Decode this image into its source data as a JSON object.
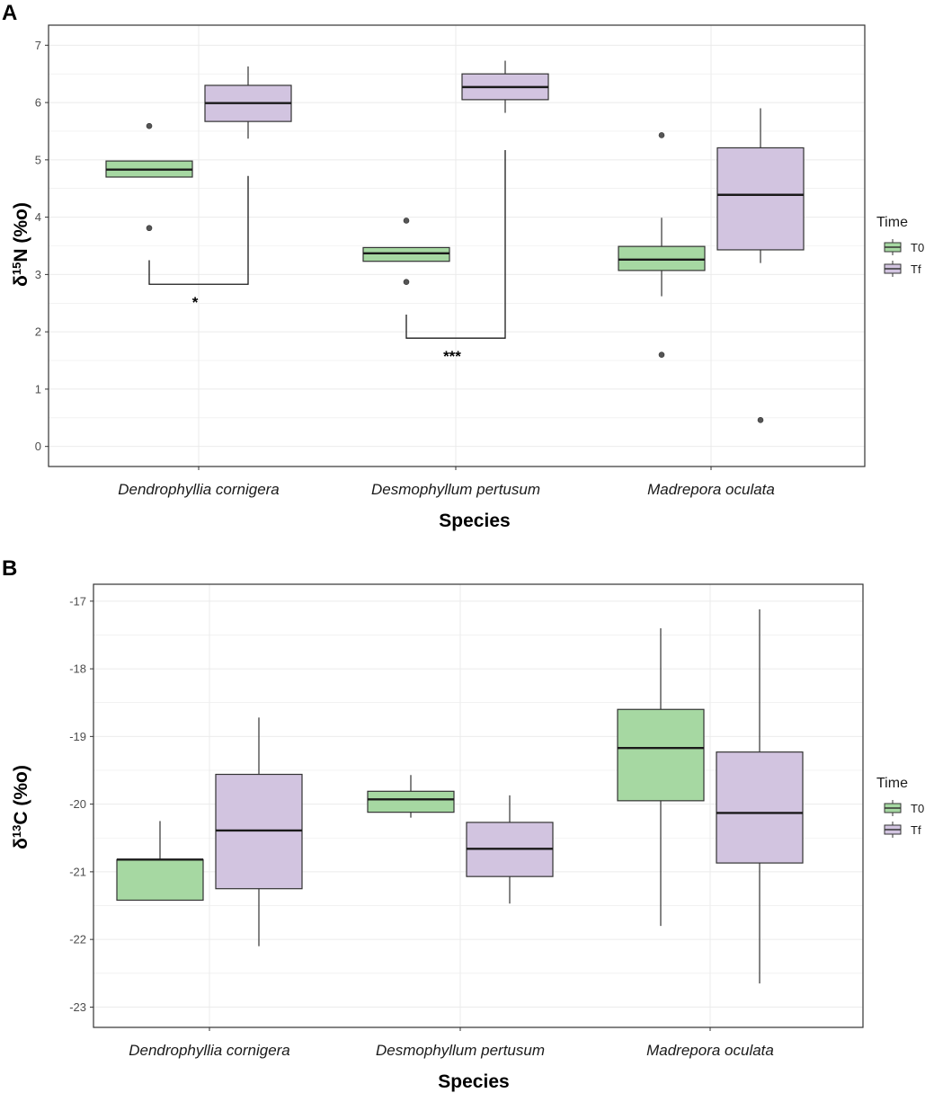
{
  "colors": {
    "T0": "#a6d8a2",
    "Tf": "#d2c4e0",
    "grid": "#ebebeb",
    "border": "#333333"
  },
  "chart_data": [
    {
      "panel": "A",
      "type": "boxplot",
      "ylabel_main": "δ",
      "ylabel_sup": "15",
      "ylabel_rest": "N (%o)",
      "xlabel": "Species",
      "ylim": [
        -0.35,
        7.35
      ],
      "yticks": [
        0,
        1,
        2,
        3,
        4,
        5,
        6,
        7
      ],
      "categories": [
        "Dendrophyllia cornigera",
        "Desmophyllum pertusum",
        "Madrepora oculata"
      ],
      "legend": {
        "title": "Time",
        "entries": [
          "T0",
          "Tf"
        ]
      },
      "series": [
        {
          "name": "T0",
          "boxes": [
            {
              "q1": 4.7,
              "median": 4.83,
              "q3": 4.98,
              "whisker_low": 4.7,
              "whisker_high": 4.98,
              "outliers": [
                5.59,
                3.81
              ]
            },
            {
              "q1": 3.23,
              "median": 3.37,
              "q3": 3.47,
              "whisker_low": 3.23,
              "whisker_high": 3.47,
              "outliers": [
                3.94,
                2.87
              ]
            },
            {
              "q1": 3.07,
              "median": 3.26,
              "q3": 3.49,
              "whisker_low": 2.62,
              "whisker_high": 3.99,
              "outliers": [
                5.43,
                1.6
              ]
            }
          ]
        },
        {
          "name": "Tf",
          "boxes": [
            {
              "q1": 5.67,
              "median": 5.99,
              "q3": 6.3,
              "whisker_low": 5.37,
              "whisker_high": 6.63,
              "outliers": []
            },
            {
              "q1": 6.05,
              "median": 6.27,
              "q3": 6.5,
              "whisker_low": 5.82,
              "whisker_high": 6.73,
              "outliers": []
            },
            {
              "q1": 3.43,
              "median": 4.39,
              "q3": 5.21,
              "whisker_low": 3.2,
              "whisker_high": 5.9,
              "outliers": [
                0.46
              ]
            }
          ]
        }
      ],
      "significance": [
        {
          "category": 0,
          "left_top": 3.25,
          "right_top": 4.72,
          "bottom": 2.83,
          "label": "*"
        },
        {
          "category": 1,
          "left_top": 2.3,
          "right_top": 5.17,
          "bottom": 1.89,
          "label": "***"
        }
      ]
    },
    {
      "panel": "B",
      "type": "boxplot",
      "ylabel_main": "δ",
      "ylabel_sup": "13",
      "ylabel_rest": "C (%o)",
      "xlabel": "Species",
      "ylim": [
        -23.3,
        -16.75
      ],
      "yticks": [
        -17,
        -18,
        -19,
        -20,
        -21,
        -22,
        -23
      ],
      "categories": [
        "Dendrophyllia cornigera",
        "Desmophyllum pertusum",
        "Madrepora oculata"
      ],
      "legend": {
        "title": "Time",
        "entries": [
          "T0",
          "Tf"
        ]
      },
      "series": [
        {
          "name": "T0",
          "boxes": [
            {
              "q1": -21.42,
              "median": -20.82,
              "q3": -20.82,
              "whisker_low": -21.42,
              "whisker_high": -20.25,
              "outliers": []
            },
            {
              "q1": -20.12,
              "median": -19.93,
              "q3": -19.81,
              "whisker_low": -20.2,
              "whisker_high": -19.57,
              "outliers": []
            },
            {
              "q1": -19.95,
              "median": -19.17,
              "q3": -18.6,
              "whisker_low": -21.8,
              "whisker_high": -17.4,
              "outliers": []
            }
          ]
        },
        {
          "name": "Tf",
          "boxes": [
            {
              "q1": -21.25,
              "median": -20.39,
              "q3": -19.56,
              "whisker_low": -22.1,
              "whisker_high": -18.72,
              "outliers": []
            },
            {
              "q1": -21.07,
              "median": -20.66,
              "q3": -20.27,
              "whisker_low": -21.47,
              "whisker_high": -19.87,
              "outliers": []
            },
            {
              "q1": -20.87,
              "median": -20.13,
              "q3": -19.23,
              "whisker_low": -22.65,
              "whisker_high": -17.12,
              "outliers": []
            }
          ]
        }
      ],
      "significance": []
    }
  ]
}
